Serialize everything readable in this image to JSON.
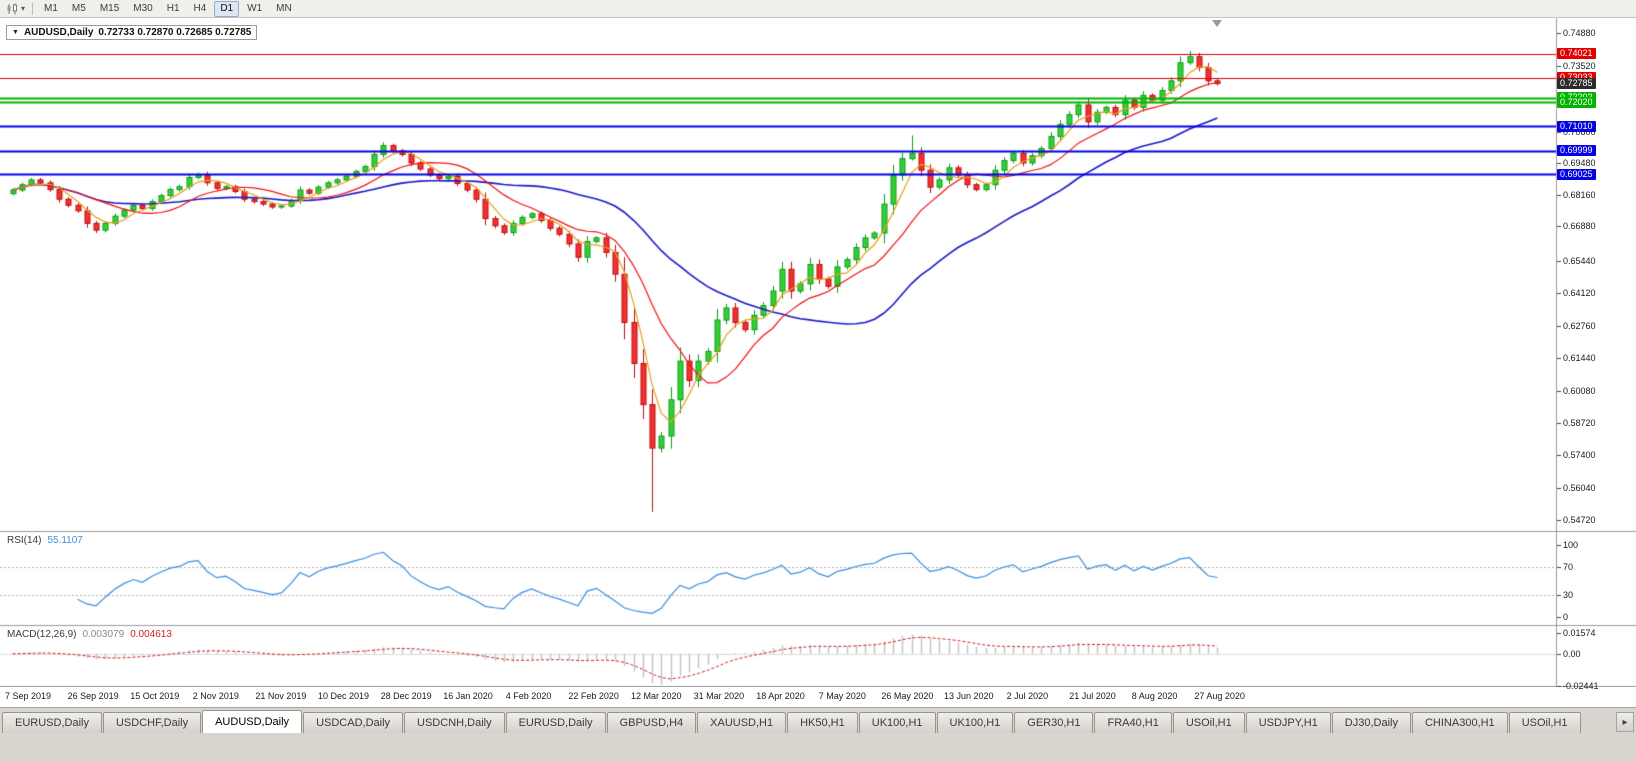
{
  "toolbar": {
    "timeframes": [
      "M1",
      "M5",
      "M15",
      "M30",
      "H1",
      "H4",
      "D1",
      "W1",
      "MN"
    ],
    "active_timeframe": "D1"
  },
  "icons": {
    "chart_type_dropdown": "▾",
    "title_marker": "▼",
    "tab_scroll_right": "▸"
  },
  "main_chart": {
    "title": "AUDUSD,Daily",
    "ohlc": "0.72733 0.72870 0.72685 0.72785",
    "last_price": {
      "value": 0.72785,
      "label": "0.72785"
    },
    "price_ticks": [
      {
        "value": 0.7488,
        "label": "0.74880"
      },
      {
        "value": 0.7352,
        "label": "0.73520"
      },
      {
        "value": 0.7216,
        "label": "0.72160"
      },
      {
        "value": 0.708,
        "label": "0.70800"
      },
      {
        "value": 0.6948,
        "label": "0.69480"
      },
      {
        "value": 0.6816,
        "label": "0.68160"
      },
      {
        "value": 0.6688,
        "label": "0.66880"
      },
      {
        "value": 0.6544,
        "label": "0.65440"
      },
      {
        "value": 0.6412,
        "label": "0.64120"
      },
      {
        "value": 0.6276,
        "label": "0.62760"
      },
      {
        "value": 0.6144,
        "label": "0.61440"
      },
      {
        "value": 0.6008,
        "label": "0.60080"
      },
      {
        "value": 0.5872,
        "label": "0.58720"
      },
      {
        "value": 0.574,
        "label": "0.57400"
      },
      {
        "value": 0.5604,
        "label": "0.56040"
      },
      {
        "value": 0.5472,
        "label": "0.54720"
      }
    ],
    "h_lines": [
      {
        "price": 0.74021,
        "label": "0.74021",
        "color": "#E00000",
        "width": 1
      },
      {
        "price": 0.73033,
        "label": "0.73033",
        "color": "#E00000",
        "width": 1
      },
      {
        "price": 0.72202,
        "label": "0.72202",
        "color": "#00B400",
        "width": 2
      },
      {
        "price": 0.7202,
        "label": "0.72020",
        "color": "#00B400",
        "width": 2
      },
      {
        "price": 0.7101,
        "label": "0.71010",
        "color": "#0202E2",
        "width": 2
      },
      {
        "price": 0.69999,
        "label": "0.69999",
        "color": "#0202E2",
        "width": 2
      },
      {
        "price": 0.69025,
        "label": "0.69025",
        "color": "#0202E2",
        "width": 2
      }
    ]
  },
  "indicators": {
    "rsi": {
      "name": "RSI(14)",
      "value": "55.1107",
      "levels": [
        70,
        30
      ],
      "ticks": [
        {
          "value": 100,
          "label": "100"
        },
        {
          "value": 70,
          "label": "70"
        },
        {
          "value": 30,
          "label": "30"
        },
        {
          "value": 0,
          "label": "0"
        }
      ]
    },
    "macd": {
      "name": "MACD(12,26,9)",
      "value_main": "0.003079",
      "value_signal": "0.004613",
      "ticks": [
        {
          "value": 0.01574,
          "label": "0.01574"
        },
        {
          "value": 0,
          "label": "0.00"
        },
        {
          "value": -0.02441,
          "label": "-0.02441"
        }
      ]
    }
  },
  "chart_data": {
    "type": "candlestick",
    "symbol": "AUDUSD",
    "period": "Daily",
    "y_range": [
      0.5427,
      0.755
    ],
    "x_labels": [
      "7 Sep 2019",
      "26 Sep 2019",
      "15 Oct 2019",
      "2 Nov 2019",
      "21 Nov 2019",
      "10 Dec 2019",
      "28 Dec 2019",
      "16 Jan 2020",
      "4 Feb 2020",
      "22 Feb 2020",
      "12 Mar 2020",
      "31 Mar 2020",
      "18 Apr 2020",
      "7 May 2020",
      "26 May 2020",
      "13 Jun 2020",
      "2 Jul 2020",
      "21 Jul 2020",
      "8 Aug 2020",
      "27 Aug 2020"
    ],
    "closes": [
      0.6838,
      0.686,
      0.688,
      0.6868,
      0.684,
      0.68,
      0.6775,
      0.6752,
      0.67,
      0.6672,
      0.67,
      0.673,
      0.6755,
      0.6775,
      0.6762,
      0.679,
      0.6815,
      0.684,
      0.6852,
      0.689,
      0.6902,
      0.6868,
      0.6845,
      0.6852,
      0.6832,
      0.68,
      0.679,
      0.678,
      0.6768,
      0.6772,
      0.6795,
      0.6838,
      0.6825,
      0.685,
      0.6868,
      0.688,
      0.6895,
      0.6915,
      0.6935,
      0.6985,
      0.7022,
      0.7,
      0.6985,
      0.695,
      0.6925,
      0.69,
      0.6885,
      0.6895,
      0.6865,
      0.6838,
      0.68,
      0.672,
      0.669,
      0.6662,
      0.67,
      0.6725,
      0.674,
      0.6712,
      0.668,
      0.6655,
      0.6615,
      0.656,
      0.6625,
      0.664,
      0.658,
      0.649,
      0.629,
      0.612,
      0.595,
      0.577,
      0.582,
      0.597,
      0.613,
      0.605,
      0.613,
      0.617,
      0.63,
      0.635,
      0.629,
      0.626,
      0.632,
      0.636,
      0.642,
      0.651,
      0.642,
      0.645,
      0.653,
      0.647,
      0.644,
      0.652,
      0.655,
      0.66,
      0.664,
      0.666,
      0.678,
      0.69,
      0.6968,
      0.699,
      0.692,
      0.685,
      0.688,
      0.693,
      0.69,
      0.686,
      0.684,
      0.686,
      0.692,
      0.696,
      0.699,
      0.695,
      0.698,
      0.701,
      0.706,
      0.711,
      0.715,
      0.719,
      0.712,
      0.716,
      0.718,
      0.715,
      0.721,
      0.718,
      0.723,
      0.721,
      0.725,
      0.729,
      0.7365,
      0.739,
      0.7345,
      0.729,
      0.72785
    ],
    "wick_low_overrides": {
      "9": 0.666,
      "69": 0.5506
    },
    "wick_high_overrides": {
      "40": 0.7035,
      "97": 0.7064,
      "127": 0.7414
    }
  },
  "colors": {
    "candle_up": "#35CE3A",
    "candle_up_border": "#0E9E13",
    "candle_down": "#F23131",
    "candle_down_border": "#BD0F0F",
    "ma_fast": "#E6A11E",
    "ma_mid": "#F01414",
    "ma_slow": "#1A1AC8",
    "rsi_line": "#3E8EDE",
    "rsi_level": "#B4B4B4",
    "macd_hist": "#C2C2C2",
    "macd_signal": "#D42020",
    "last_price_bg": "#2B2B2B"
  },
  "tabs": [
    {
      "label": "EURUSD,Daily",
      "active": false
    },
    {
      "label": "USDCHF,Daily",
      "active": false
    },
    {
      "label": "AUDUSD,Daily",
      "active": true
    },
    {
      "label": "USDCAD,Daily",
      "active": false
    },
    {
      "label": "USDCNH,Daily",
      "active": false
    },
    {
      "label": "EURUSD,Daily",
      "active": false
    },
    {
      "label": "GBPUSD,H4",
      "active": false
    },
    {
      "label": "XAUUSD,H1",
      "active": false
    },
    {
      "label": "HK50,H1",
      "active": false
    },
    {
      "label": "UK100,H1",
      "active": false
    },
    {
      "label": "UK100,H1",
      "active": false
    },
    {
      "label": "GER30,H1",
      "active": false
    },
    {
      "label": "FRA40,H1",
      "active": false
    },
    {
      "label": "USOil,H1",
      "active": false
    },
    {
      "label": "USDJPY,H1",
      "active": false
    },
    {
      "label": "DJ30,Daily",
      "active": false
    },
    {
      "label": "CHINA300,H1",
      "active": false
    },
    {
      "label": "USOil,H1",
      "active": false
    }
  ]
}
